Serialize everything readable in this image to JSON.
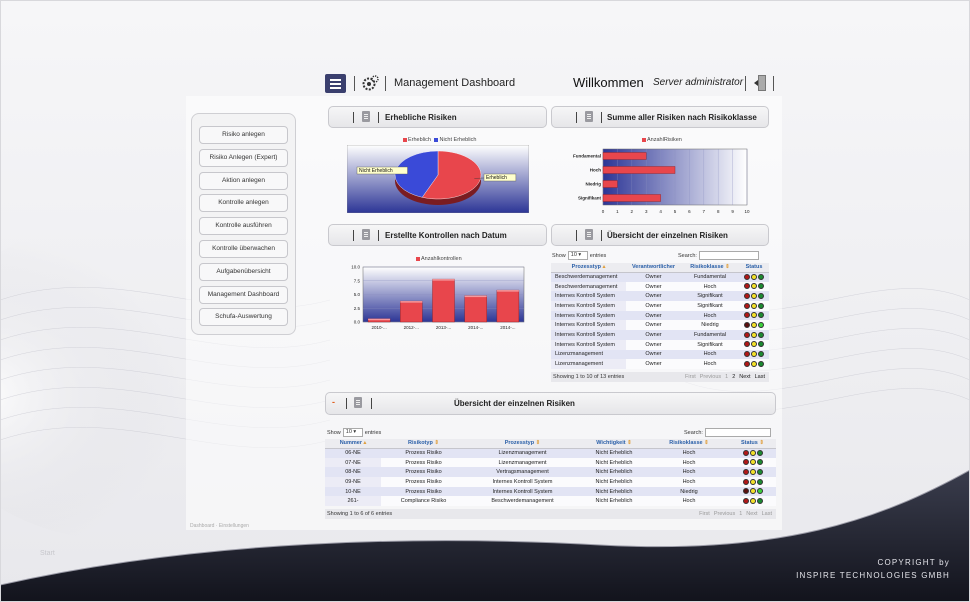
{
  "header": {
    "title": "Management Dashboard",
    "welcome": "Willkommen",
    "user": "Server administrator"
  },
  "sidebar": {
    "items": [
      {
        "label": "Risiko anlegen"
      },
      {
        "label": "Risiko Anlegen (Expert)"
      },
      {
        "label": "Aktion anlegen"
      },
      {
        "label": "Kontrolle anlegen"
      },
      {
        "label": "Kontrolle ausführen"
      },
      {
        "label": "Kontrolle überwachen"
      },
      {
        "label": "Aufgabenübersicht"
      },
      {
        "label": "Management Dashboard"
      },
      {
        "label": "Schufa-Auswertung"
      }
    ]
  },
  "panels": {
    "p1": "Erhebliche Risiken",
    "p2": "Summe aller Risiken nach Risikoklasse",
    "p3": "Erstellte Kontrollen nach Datum",
    "p4": "Übersicht der einzelnen Risiken",
    "p5": "Übersicht der einzelnen Risiken",
    "p5_collapse": "-"
  },
  "colors": {
    "red": "#e8464c",
    "blue": "#3a4ad8",
    "navy": "#2a2f8c",
    "light_red": "#b01818",
    "light_yellow": "#f2e02a",
    "light_green": "#1d8a32",
    "light_green_on": "#3ccf3c"
  },
  "chart_data": [
    {
      "type": "pie",
      "title": "",
      "legend": [
        "Erheblich",
        "Nicht Erheblich"
      ],
      "labels": [
        "Erheblich",
        "Nicht Erheblich"
      ],
      "values": [
        56,
        44
      ],
      "colors": [
        "#e8464c",
        "#3a4ad8"
      ]
    },
    {
      "type": "bar",
      "orientation": "horizontal",
      "title": "",
      "legend": [
        "AnzahlRisiken"
      ],
      "categories": [
        "Fundamental",
        "Hoch",
        "Niedrig",
        "Signifikant"
      ],
      "values": [
        3,
        5,
        1,
        4
      ],
      "xlim": [
        0,
        10
      ],
      "xticks": [
        "0",
        "1",
        "2",
        "3",
        "4",
        "5",
        "6",
        "7",
        "8",
        "9",
        "10"
      ]
    },
    {
      "type": "bar",
      "title": "",
      "legend": [
        "Anzahlkontrollen"
      ],
      "categories": [
        "2010-...",
        "2012-...",
        "2013-...",
        "2014-...",
        "2014-..."
      ],
      "values": [
        0.6,
        3.8,
        7.8,
        4.8,
        5.8
      ],
      "ylim": [
        0,
        10
      ],
      "yticks": [
        "0.0",
        "2.5",
        "5.0",
        "7.5",
        "10.0"
      ]
    }
  ],
  "table1": {
    "show": "Show",
    "length": "10",
    "entries": "entries",
    "search": "Search:",
    "headers": [
      "Prozesstyp",
      "Verantwortlicher",
      "Risikoklasse",
      "Status"
    ],
    "rows": [
      {
        "c1": "Beschwerdemanagement",
        "c2": "Owner",
        "c3": "Fundamental",
        "lights": [
          1,
          0,
          0
        ]
      },
      {
        "c1": "Beschwerdemanagement",
        "c2": "Owner",
        "c3": "Hoch",
        "lights": [
          1,
          0,
          0
        ]
      },
      {
        "c1": "Internes Kontroll System",
        "c2": "Owner",
        "c3": "Signifikant",
        "lights": [
          1,
          0,
          0
        ]
      },
      {
        "c1": "Internes Kontroll System",
        "c2": "Owner",
        "c3": "Signifikant",
        "lights": [
          1,
          0,
          0
        ]
      },
      {
        "c1": "Internes Kontroll System",
        "c2": "Owner",
        "c3": "Hoch",
        "lights": [
          1,
          0,
          0
        ]
      },
      {
        "c1": "Internes Kontroll System",
        "c2": "Owner",
        "c3": "Niedrig",
        "lights": [
          0,
          0,
          1
        ]
      },
      {
        "c1": "Internes Kontroll System",
        "c2": "Owner",
        "c3": "Fundamental",
        "lights": [
          1,
          0,
          0
        ]
      },
      {
        "c1": "Internes Kontroll System",
        "c2": "Owner",
        "c3": "Signifikant",
        "lights": [
          1,
          0,
          0
        ]
      },
      {
        "c1": "Lizenzmanagement",
        "c2": "Owner",
        "c3": "Hoch",
        "lights": [
          1,
          0,
          0
        ]
      },
      {
        "c1": "Lizenzmanagement",
        "c2": "Owner",
        "c3": "Hoch",
        "lights": [
          1,
          0,
          0
        ]
      }
    ],
    "info": "Showing 1 to 10 of 13 entries",
    "pager": [
      "First",
      "Previous",
      "1",
      "2",
      "Next",
      "Last"
    ]
  },
  "table2": {
    "show": "Show",
    "length": "10",
    "entries": "entries",
    "search": "Search:",
    "headers": [
      "Nummer",
      "Risikotyp",
      "Prozesstyp",
      "Wichtigkeit",
      "Risikoklasse",
      "Status"
    ],
    "rows": [
      {
        "c1": "06-NE",
        "c2": "Prozess Risiko",
        "c3": "Lizenzmanagement",
        "c4": "Nicht Erheblich",
        "c5": "Hoch",
        "lights": [
          1,
          0,
          0
        ]
      },
      {
        "c1": "07-NE",
        "c2": "Prozess Risiko",
        "c3": "Lizenzmanagement",
        "c4": "Nicht Erheblich",
        "c5": "Hoch",
        "lights": [
          1,
          0,
          0
        ]
      },
      {
        "c1": "08-NE",
        "c2": "Prozess Risiko",
        "c3": "Vertragsmanagement",
        "c4": "Nicht Erheblich",
        "c5": "Hoch",
        "lights": [
          1,
          0,
          0
        ]
      },
      {
        "c1": "09-NE",
        "c2": "Prozess Risiko",
        "c3": "Internes Kontroll System",
        "c4": "Nicht Erheblich",
        "c5": "Hoch",
        "lights": [
          1,
          0,
          0
        ]
      },
      {
        "c1": "10-NE",
        "c2": "Prozess Risiko",
        "c3": "Internes Kontroll System",
        "c4": "Nicht Erheblich",
        "c5": "Niedrig",
        "lights": [
          0,
          0,
          1
        ]
      },
      {
        "c1": "261-",
        "c2": "Compliance Risiko",
        "c3": "Beschwerdemanagement",
        "c4": "Nicht Erheblich",
        "c5": "Hoch",
        "lights": [
          1,
          0,
          0
        ]
      }
    ],
    "info": "Showing 1 to 6 of 6 entries",
    "pager": [
      "First",
      "Previous",
      "1",
      "Next",
      "Last"
    ]
  },
  "footer": {
    "left": "Start",
    "tab": "Dashboard · Einstellungen",
    "copyright_line1": "COPYRIGHT by",
    "copyright_line2": "INSPIRE TECHNOLOGIES GMBH"
  }
}
